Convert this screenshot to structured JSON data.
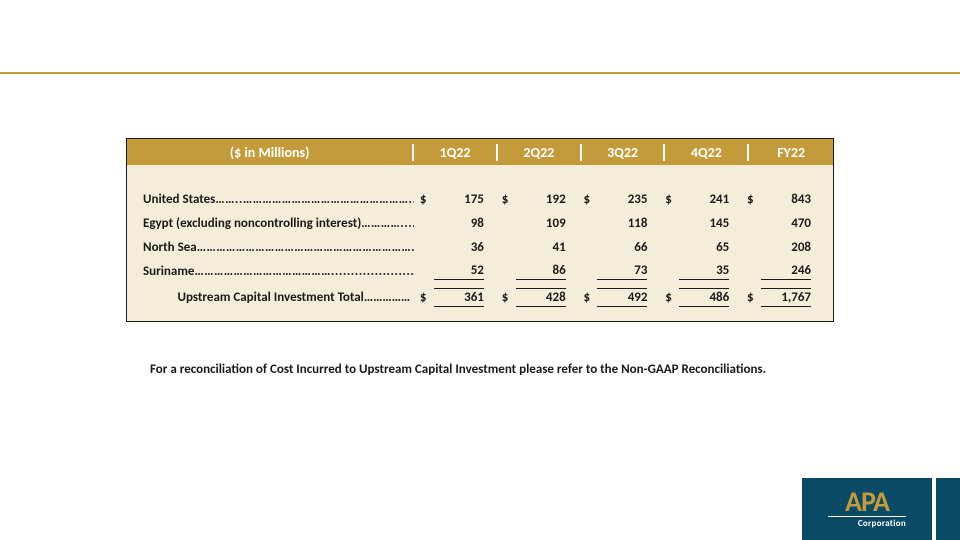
{
  "header_units": "($ in Millions)",
  "columns": [
    "1Q22",
    "2Q22",
    "3Q22",
    "4Q22",
    "FY22"
  ],
  "rows": [
    {
      "label": "United States",
      "dots": "……..……………………………………………........",
      "show_dollar": true,
      "values": [
        "175",
        "192",
        "235",
        "241",
        "843"
      ]
    },
    {
      "label": "Egypt (excluding noncontrolling interest)",
      "dots": "………….....",
      "show_dollar": false,
      "values": [
        "98",
        "109",
        "118",
        "145",
        "470"
      ]
    },
    {
      "label": "North Sea",
      "dots": "……………………………………………………………….",
      "show_dollar": false,
      "values": [
        "36",
        "41",
        "66",
        "65",
        "208"
      ]
    },
    {
      "label": "Suriname",
      "dots": "……………………………………......................",
      "show_dollar": false,
      "values": [
        "52",
        "86",
        "73",
        "35",
        "246"
      ],
      "underline": true
    }
  ],
  "total": {
    "label": "Upstream Capital Investment Total……………",
    "show_dollar": true,
    "values": [
      "361",
      "428",
      "492",
      "486",
      "1,767"
    ]
  },
  "footnote": "For a reconciliation of Cost Incurred to Upstream Capital Investment please refer to the Non-GAAP Reconciliations.",
  "logo": {
    "apa": "APA",
    "corp": "Corporation"
  },
  "colors": {
    "gold": "#c39b3a",
    "cream": "#f4edda",
    "navy": "#0a4a66",
    "text": "#1a1a1a"
  }
}
